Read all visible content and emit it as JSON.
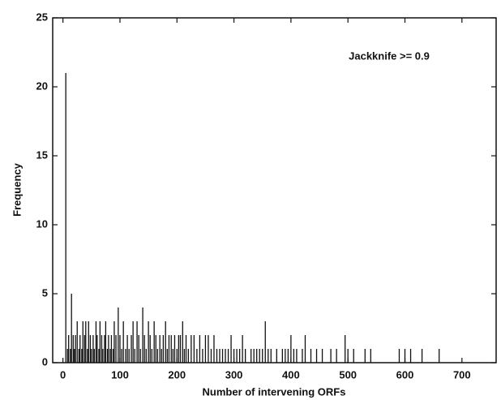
{
  "chart_data": {
    "type": "stem",
    "annotation": "Jackknife >= 0.9",
    "x_label": "Number of intervening ORFs",
    "y_label": "Frequency",
    "xlim": [
      -18,
      760
    ],
    "ylim": [
      0,
      25
    ],
    "xticks": [
      0,
      100,
      200,
      300,
      400,
      500,
      600,
      700
    ],
    "yticks": [
      0,
      5,
      10,
      15,
      20,
      25
    ],
    "color": "#111111",
    "x": [
      5,
      8,
      10,
      13,
      15,
      18,
      20,
      22,
      25,
      28,
      30,
      33,
      35,
      38,
      40,
      43,
      45,
      48,
      50,
      53,
      55,
      58,
      60,
      63,
      65,
      68,
      70,
      73,
      75,
      78,
      80,
      83,
      85,
      88,
      90,
      93,
      97,
      100,
      103,
      106,
      110,
      113,
      116,
      120,
      123,
      126,
      130,
      133,
      136,
      140,
      143,
      146,
      150,
      153,
      156,
      160,
      163,
      166,
      170,
      173,
      176,
      180,
      183,
      186,
      190,
      193,
      196,
      200,
      203,
      206,
      210,
      213,
      216,
      220,
      225,
      230,
      235,
      240,
      245,
      250,
      255,
      260,
      265,
      270,
      275,
      280,
      285,
      290,
      295,
      300,
      305,
      310,
      315,
      320,
      330,
      335,
      340,
      345,
      350,
      355,
      360,
      365,
      375,
      385,
      390,
      395,
      400,
      405,
      410,
      420,
      425,
      435,
      445,
      455,
      470,
      480,
      495,
      500,
      510,
      530,
      540,
      590,
      600,
      610,
      630,
      660
    ],
    "values": [
      21,
      1,
      2,
      1,
      5,
      2,
      1,
      2,
      3,
      1,
      2,
      1,
      3,
      2,
      3,
      1,
      3,
      2,
      1,
      2,
      1,
      3,
      2,
      1,
      3,
      2,
      1,
      2,
      3,
      1,
      2,
      1,
      2,
      1,
      3,
      2,
      4,
      2,
      1,
      3,
      1,
      2,
      1,
      2,
      3,
      1,
      3,
      2,
      1,
      4,
      2,
      1,
      3,
      2,
      1,
      3,
      2,
      1,
      2,
      1,
      2,
      3,
      1,
      2,
      2,
      1,
      2,
      1,
      2,
      2,
      3,
      1,
      2,
      1,
      2,
      2,
      1,
      2,
      1,
      2,
      2,
      1,
      2,
      1,
      1,
      1,
      1,
      1,
      2,
      1,
      1,
      1,
      2,
      1,
      1,
      1,
      1,
      1,
      1,
      3,
      1,
      1,
      1,
      1,
      1,
      1,
      2,
      1,
      1,
      1,
      2,
      1,
      1,
      1,
      1,
      1,
      2,
      1,
      1,
      1,
      1,
      1,
      1,
      1,
      1,
      1
    ]
  }
}
